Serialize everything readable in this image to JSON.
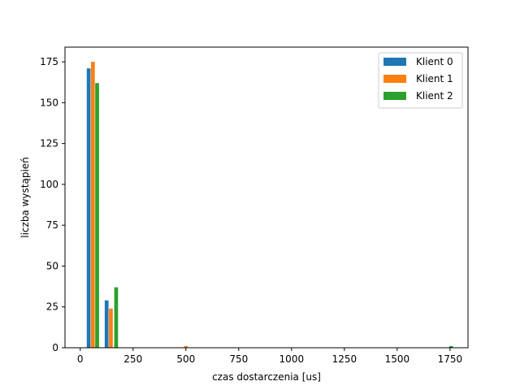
{
  "chart_data": {
    "type": "bar",
    "title": "",
    "xlabel": "czas dostarczenia [us]",
    "ylabel": "liczba wystąpień",
    "xlim": [
      -72,
      1835
    ],
    "ylim": [
      0,
      184
    ],
    "xticks": [
      0,
      250,
      500,
      750,
      1000,
      1250,
      1500,
      1750
    ],
    "yticks": [
      0,
      25,
      50,
      75,
      100,
      125,
      150,
      175
    ],
    "grid": false,
    "legend_position": "top-right",
    "bar_width": 18,
    "series": [
      {
        "name": "Klient 0",
        "color": "#1f77b4",
        "bars": [
          {
            "x": 40,
            "value": 171
          },
          {
            "x": 125,
            "value": 29
          }
        ]
      },
      {
        "name": "Klient 1",
        "color": "#ff7f0e",
        "bars": [
          {
            "x": 60,
            "value": 175
          },
          {
            "x": 145,
            "value": 24
          },
          {
            "x": 500,
            "value": 1
          }
        ]
      },
      {
        "name": "Klient 2",
        "color": "#2ca02c",
        "bars": [
          {
            "x": 80,
            "value": 162
          },
          {
            "x": 170,
            "value": 37
          },
          {
            "x": 1755,
            "value": 1
          }
        ]
      }
    ]
  }
}
